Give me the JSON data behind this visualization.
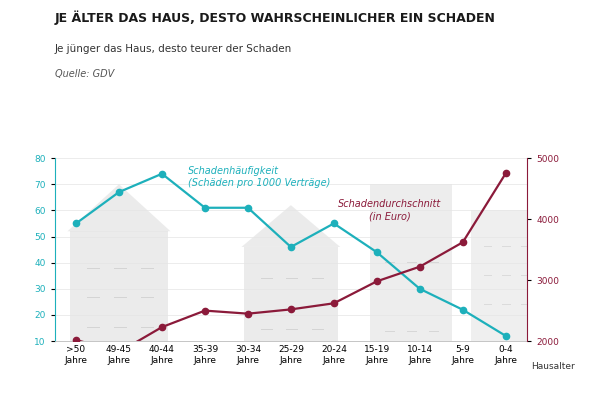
{
  "categories": [
    ">50\nJahre",
    "49-45\nJahre",
    "40-44\nJahre",
    "35-39\nJahre",
    "30-34\nJahre",
    "25-29\nJahre",
    "20-24\nJahre",
    "15-19\nJahre",
    "10-14\nJahre",
    "5-9\nJahre",
    "0-4\nJahre"
  ],
  "haeufigkeit": [
    55,
    67,
    74,
    61,
    61,
    46,
    55,
    44,
    30,
    22,
    12
  ],
  "durchschnitt": [
    2020,
    1820,
    2230,
    2500,
    2450,
    2520,
    2620,
    2980,
    3220,
    3620,
    4750
  ],
  "haeufigkeit_color": "#1db0bb",
  "durchschnitt_color": "#8b1a3a",
  "background_color": "#ffffff",
  "title": "JE ÄLTER DAS HAUS, DESTO WAHRSCHEINLICHER EIN SCHADEN",
  "subtitle": "Je jünger das Haus, desto teurer der Schaden",
  "source": "Quelle: GDV",
  "xlabel": "Hausalter",
  "ylim_left": [
    10,
    80
  ],
  "ylim_right": [
    2000,
    5000
  ],
  "yticks_left": [
    10,
    20,
    30,
    40,
    50,
    60,
    70,
    80
  ],
  "yticks_right": [
    2000,
    3000,
    4000,
    5000
  ],
  "label_haeufigkeit": "Schadenhäufigkeit\n(Schäden pro 1000 Verträge)",
  "label_durchschnitt": "Schadendurchschnitt\n(in Euro)",
  "title_fontsize": 9,
  "subtitle_fontsize": 7.5,
  "source_fontsize": 7,
  "tick_fontsize": 6.5,
  "label_fontsize": 7
}
